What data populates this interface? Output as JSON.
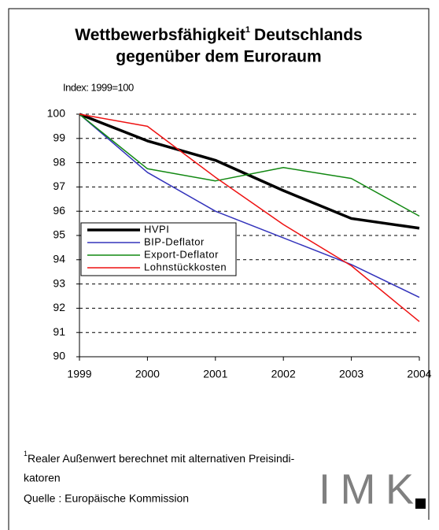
{
  "chart_data": {
    "type": "line",
    "title": [
      "Wettbewerbsfähigkeit",
      "Deutschlands",
      "gegenüber dem Euroraum"
    ],
    "title_footnote_mark": "1",
    "y_label": "Index: 1999=100",
    "categories": [
      "1999",
      "2000",
      "2001",
      "2002",
      "2003",
      "2004"
    ],
    "series": [
      {
        "name": "HVPI",
        "color": "#000000",
        "values": [
          100,
          98.9,
          98.1,
          96.85,
          95.7,
          95.3
        ]
      },
      {
        "name": "BIP-Deflator",
        "color": "#3333bb",
        "values": [
          100,
          97.6,
          96.0,
          94.9,
          93.8,
          92.45
        ]
      },
      {
        "name": "Export-Deflator",
        "color": "#118811",
        "values": [
          100,
          97.75,
          97.25,
          97.8,
          97.35,
          95.8
        ]
      },
      {
        "name": "Lohnstückkosten",
        "color": "#ee1111",
        "values": [
          100,
          99.5,
          97.4,
          95.45,
          93.75,
          91.45
        ]
      }
    ],
    "ylim": [
      90,
      100
    ],
    "yticks": [
      90,
      91,
      92,
      93,
      94,
      95,
      96,
      97,
      98,
      99,
      100
    ],
    "grid": true,
    "footnote": {
      "mark": "1",
      "lines": [
        "Realer Außenwert berechnet mit alternativen Preisindi-",
        "katoren"
      ]
    },
    "source": "Quelle : Europäische Kommission",
    "logo": "IMK"
  }
}
